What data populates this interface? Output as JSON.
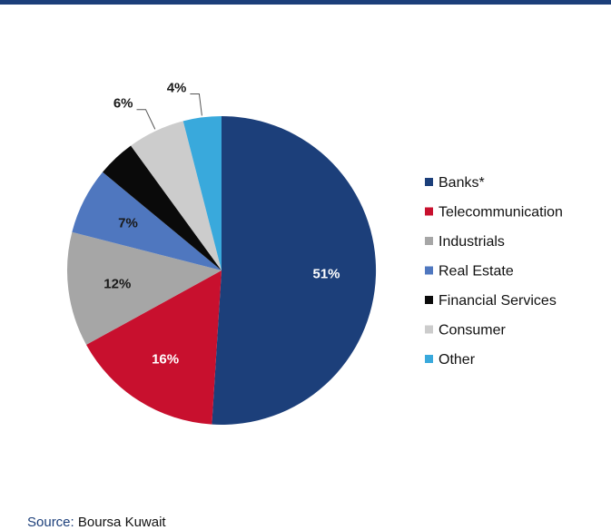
{
  "chart_data": {
    "type": "pie",
    "title": "",
    "legend_placement": "right",
    "slices": [
      {
        "name": "Banks*",
        "value": 51,
        "label": "51%",
        "color": "#1c3f7a",
        "label_color": "#ffffff"
      },
      {
        "name": "Telecommunication",
        "value": 16,
        "label": "16%",
        "color": "#c8102e",
        "label_color": "#ffffff"
      },
      {
        "name": "Industrials",
        "value": 12,
        "label": "12%",
        "color": "#a6a6a6",
        "label_color": "#1a1a1a"
      },
      {
        "name": "Real Estate",
        "value": 7,
        "label": "7%",
        "color": "#4f77bf",
        "label_color": "#1a1a1a"
      },
      {
        "name": "Financial Services",
        "value": 4,
        "label": "",
        "color": "#0a0a0a",
        "label_color": "#1a1a1a"
      },
      {
        "name": "Consumer",
        "value": 6,
        "label": "6%",
        "color": "#cccccc",
        "label_color": "#1a1a1a"
      },
      {
        "name": "Other",
        "value": 4,
        "label": "4%",
        "color": "#39a9dc",
        "label_color": "#1a1a1a"
      }
    ]
  },
  "footer": {
    "source_label": "Source:",
    "source_value": "Boursa Kuwait"
  }
}
